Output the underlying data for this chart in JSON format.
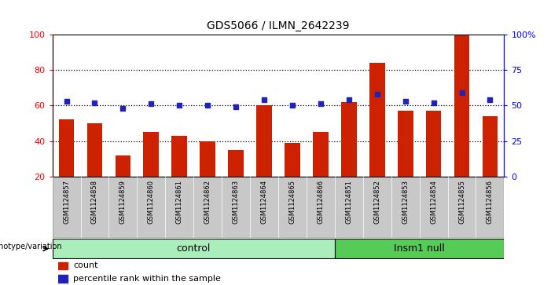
{
  "title": "GDS5066 / ILMN_2642239",
  "samples": [
    "GSM1124857",
    "GSM1124858",
    "GSM1124859",
    "GSM1124860",
    "GSM1124861",
    "GSM1124862",
    "GSM1124863",
    "GSM1124864",
    "GSM1124865",
    "GSM1124866",
    "GSM1124851",
    "GSM1124852",
    "GSM1124853",
    "GSM1124854",
    "GSM1124855",
    "GSM1124856"
  ],
  "red_values": [
    52,
    50,
    32,
    45,
    43,
    40,
    35,
    60,
    39,
    45,
    62,
    84,
    57,
    57,
    100,
    54
  ],
  "blue_percentile": [
    53,
    52,
    48,
    51,
    50,
    50,
    49,
    54,
    50,
    51,
    54,
    58,
    53,
    52,
    59,
    54
  ],
  "n_control": 10,
  "n_insm1": 6,
  "ylim_left": [
    20,
    100
  ],
  "ylim_right": [
    0,
    100
  ],
  "yticks_left": [
    20,
    40,
    60,
    80,
    100
  ],
  "yticks_right": [
    0,
    25,
    50,
    75,
    100
  ],
  "ytick_labels_right": [
    "0",
    "25",
    "50",
    "75",
    "100%"
  ],
  "bar_color": "#CC2200",
  "blue_color": "#2222BB",
  "control_color": "#AAEEBB",
  "insm1_color": "#55CC55",
  "xlabel_bg": "#C8C8C8",
  "legend_count": "count",
  "legend_pct": "percentile rank within the sample",
  "genotype_label": "genotype/variation"
}
